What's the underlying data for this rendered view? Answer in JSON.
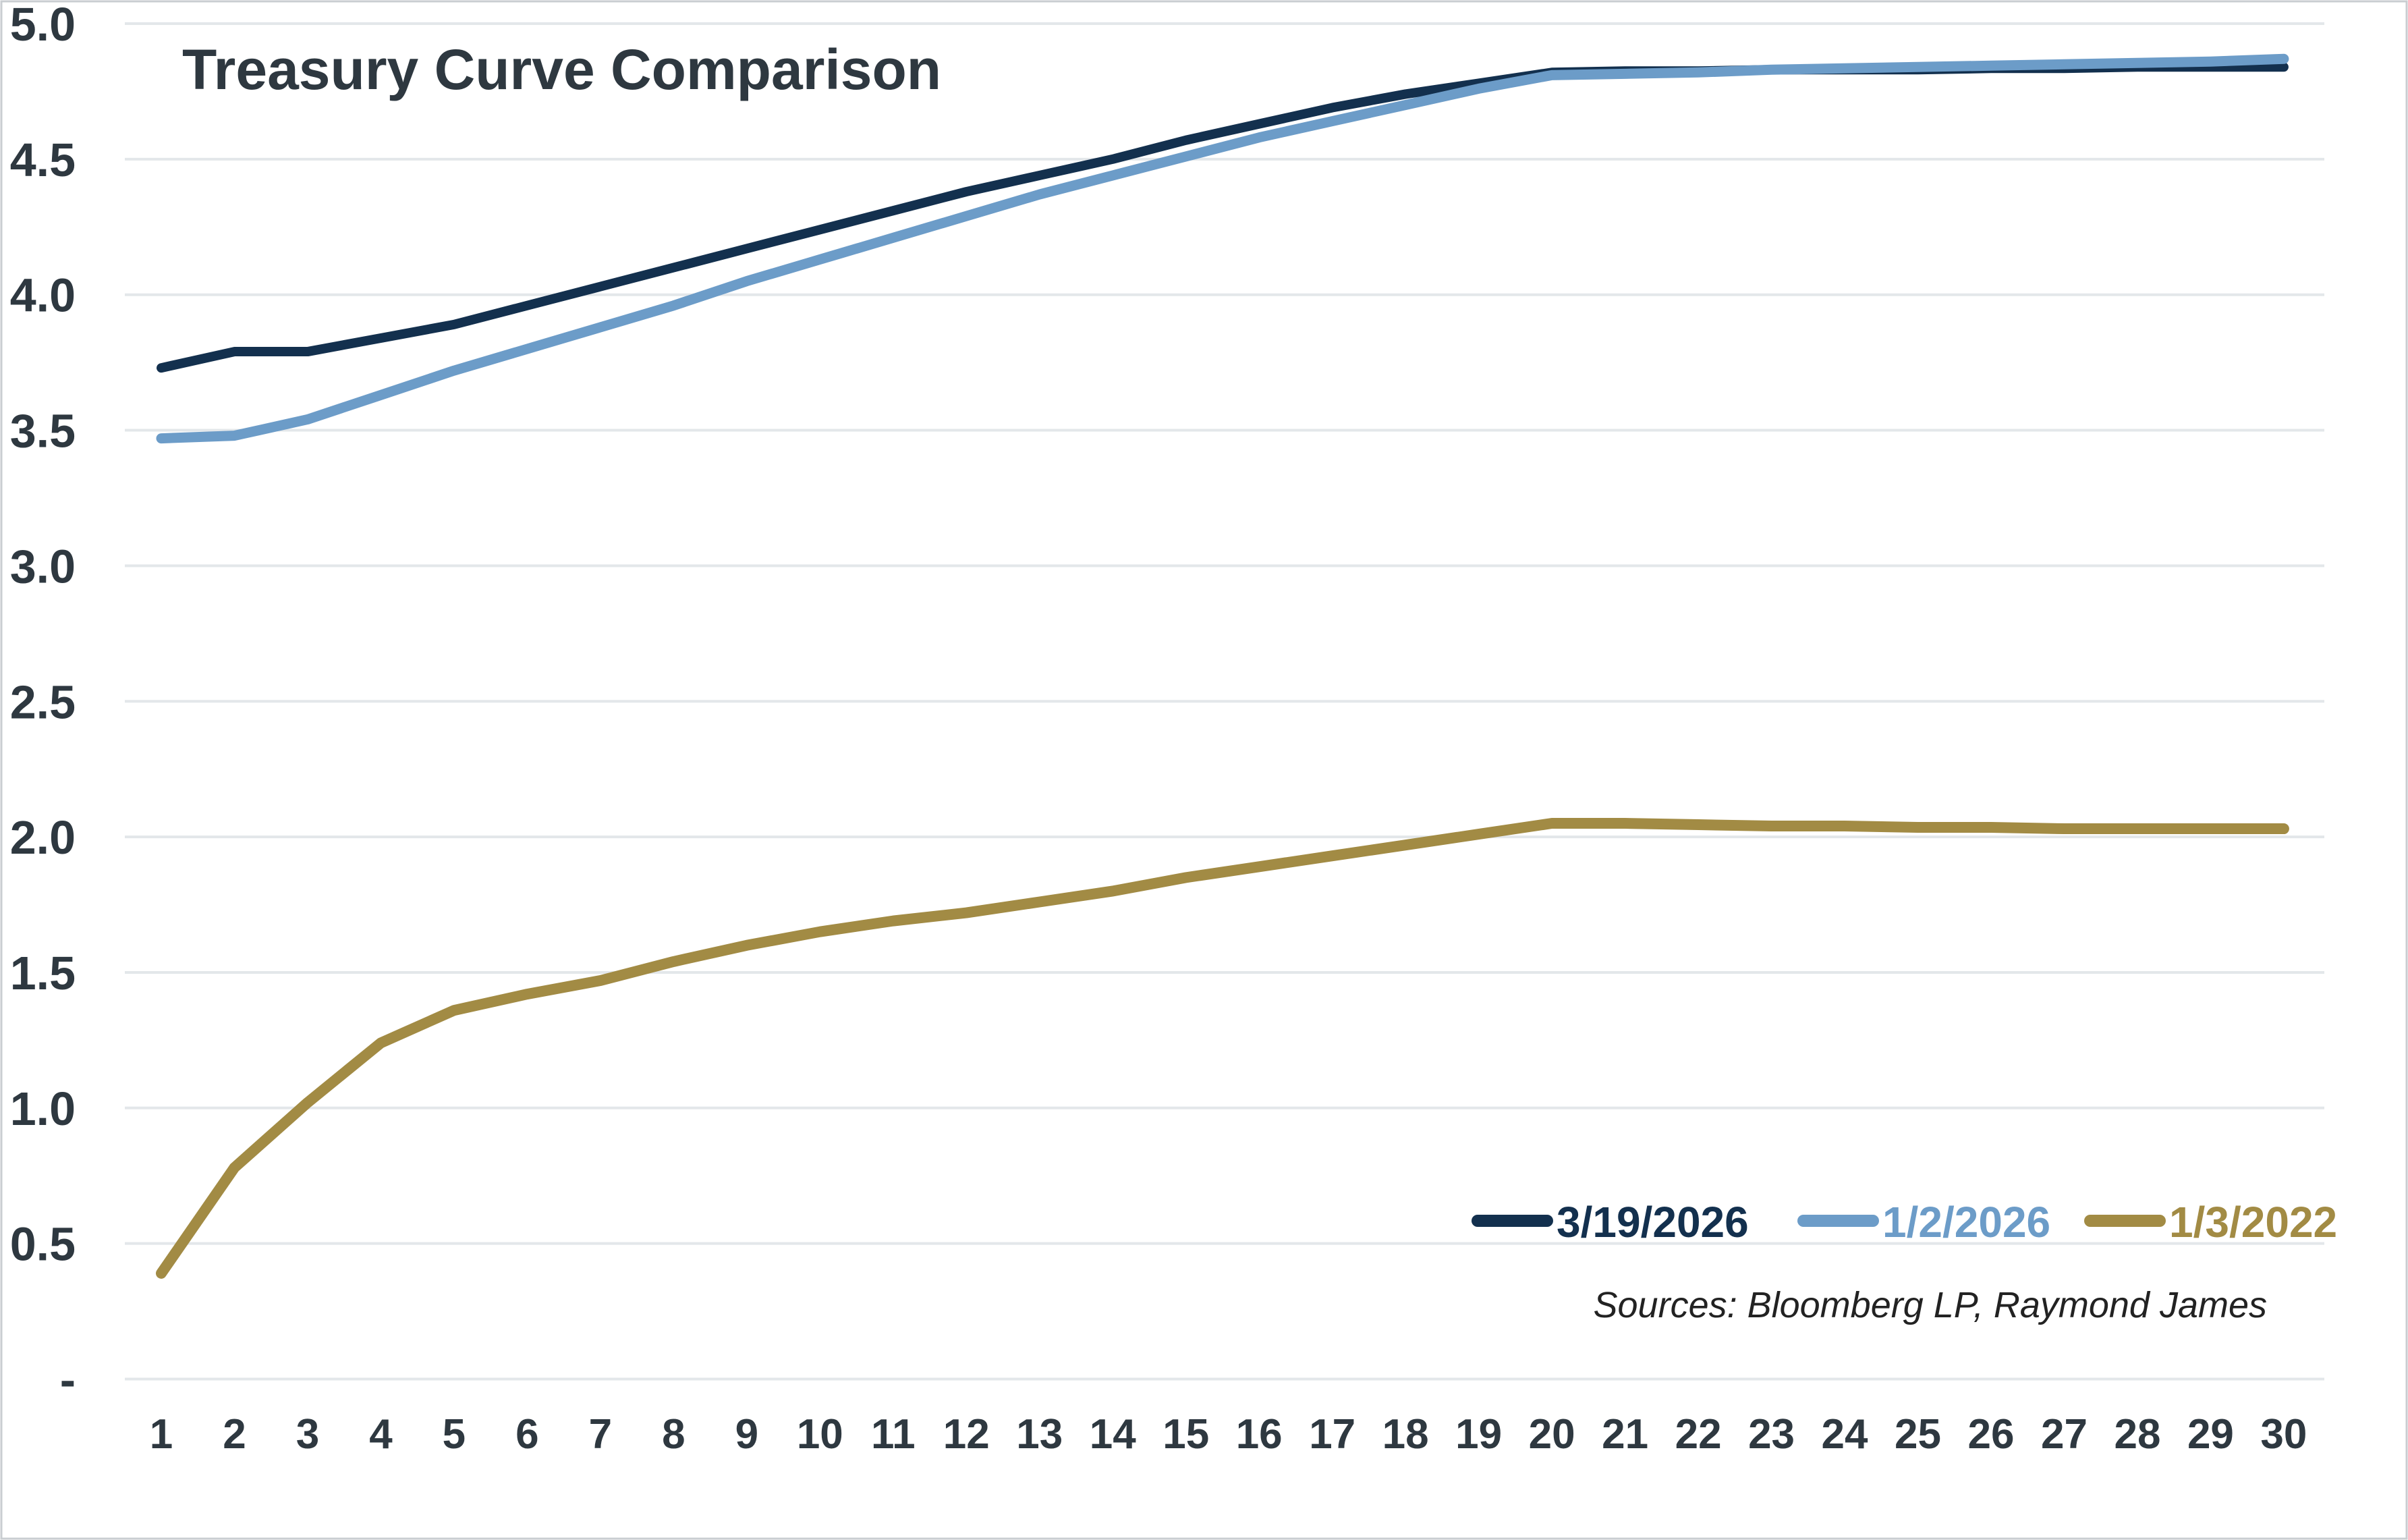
{
  "chart_data": {
    "type": "line",
    "title": "Treasury Curve Comparison",
    "source_note": "Sources: Bloomberg LP, Raymond James",
    "xlabel": "",
    "ylabel": "",
    "x": [
      1,
      2,
      3,
      4,
      5,
      6,
      7,
      8,
      9,
      10,
      11,
      12,
      13,
      14,
      15,
      16,
      17,
      18,
      19,
      20,
      21,
      22,
      23,
      24,
      25,
      26,
      27,
      28,
      29,
      30
    ],
    "x_tick_labels": [
      "1",
      "2",
      "3",
      "4",
      "5",
      "6",
      "7",
      "8",
      "9",
      "10",
      "11",
      "12",
      "13",
      "14",
      "15",
      "16",
      "17",
      "18",
      "19",
      "20",
      "21",
      "22",
      "23",
      "24",
      "25",
      "26",
      "27",
      "28",
      "29",
      "30"
    ],
    "y_ticks": [
      5.0,
      4.5,
      4.0,
      3.5,
      3.0,
      2.5,
      2.0,
      1.5,
      1.0,
      0.5,
      0.0
    ],
    "y_tick_labels": [
      "5.0",
      "4.5",
      "4.0",
      "3.5",
      "3.0",
      "2.5",
      "2.0",
      "1.5",
      "1.0",
      "0.5",
      "-"
    ],
    "ylim": [
      0,
      5
    ],
    "grid": "horizontal",
    "legend_position": "bottom-right",
    "draw_order": [
      2,
      0,
      1
    ],
    "series": [
      {
        "name": "3/19/2026",
        "color": "#13304E",
        "stroke_width": 14,
        "values": [
          3.73,
          3.79,
          3.79,
          3.84,
          3.89,
          3.96,
          4.03,
          4.1,
          4.17,
          4.24,
          4.31,
          4.38,
          4.44,
          4.5,
          4.57,
          4.63,
          4.69,
          4.74,
          4.78,
          4.82,
          4.825,
          4.825,
          4.83,
          4.83,
          4.83,
          4.835,
          4.835,
          4.84,
          4.84,
          4.84
        ]
      },
      {
        "name": "1/2/2026",
        "color": "#6C9CC8",
        "stroke_width": 15,
        "values": [
          3.47,
          3.48,
          3.54,
          3.63,
          3.72,
          3.8,
          3.88,
          3.96,
          4.05,
          4.13,
          4.21,
          4.29,
          4.37,
          4.44,
          4.51,
          4.58,
          4.64,
          4.7,
          4.76,
          4.81,
          4.815,
          4.82,
          4.83,
          4.835,
          4.84,
          4.845,
          4.85,
          4.855,
          4.86,
          4.87
        ]
      },
      {
        "name": "1/3/2022",
        "color": "#A28B44",
        "stroke_width": 16,
        "values": [
          0.39,
          0.78,
          1.02,
          1.24,
          1.36,
          1.42,
          1.47,
          1.54,
          1.6,
          1.65,
          1.69,
          1.72,
          1.76,
          1.8,
          1.85,
          1.89,
          1.93,
          1.97,
          2.01,
          2.05,
          2.05,
          2.045,
          2.04,
          2.04,
          2.035,
          2.035,
          2.03,
          2.03,
          2.03,
          2.03
        ]
      }
    ]
  },
  "colors": {
    "text": "#2E3840",
    "grid": "#E3E7EA",
    "border": "#C9CDD1",
    "background": "#FFFFFF",
    "source_text": "#222222"
  }
}
